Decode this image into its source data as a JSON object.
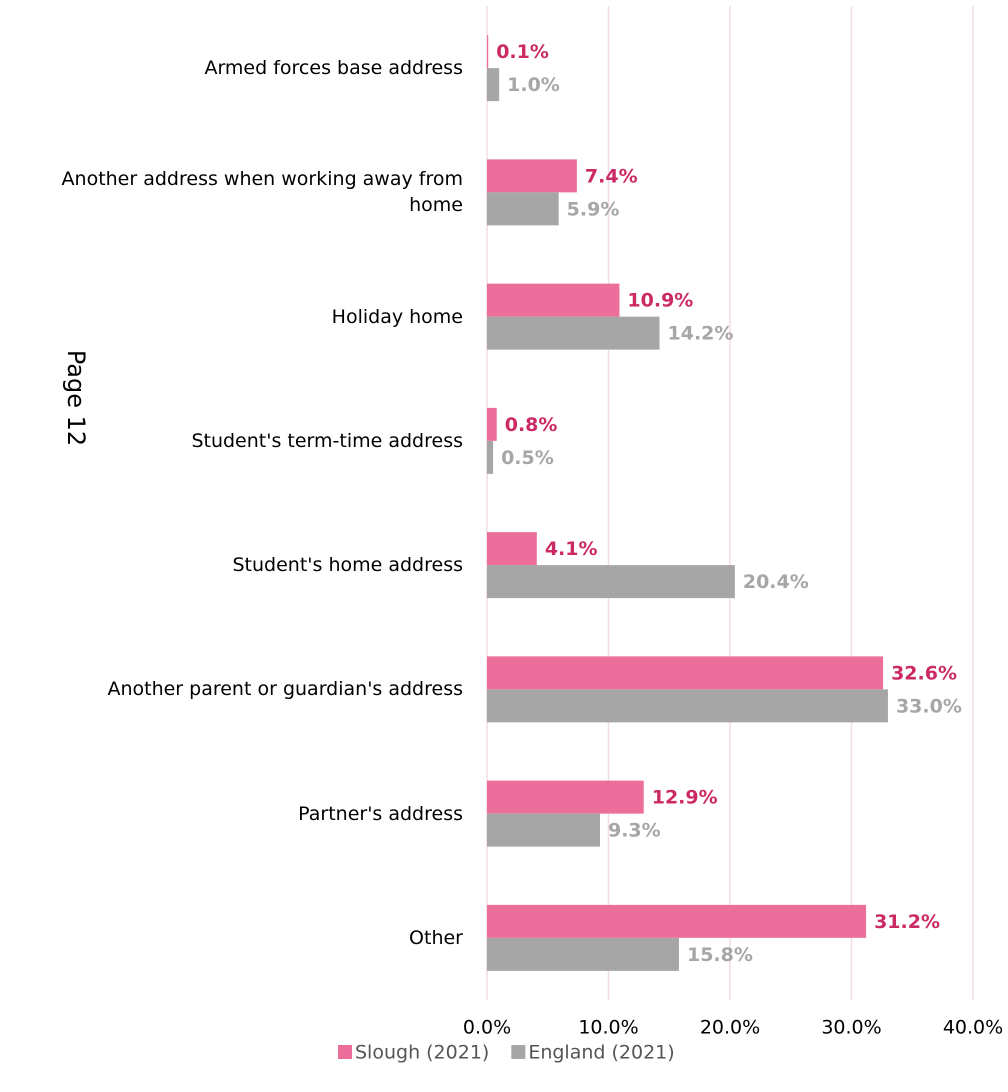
{
  "chart_data": {
    "type": "hbar",
    "annotation": "Page 12",
    "categories": [
      "Armed forces base address",
      "Another address when working away from home",
      "Holiday home",
      "Student's term-time address",
      "Student's home address",
      "Another parent or guardian's address",
      "Partner's address",
      "Other"
    ],
    "series": [
      {
        "name": "Slough (2021)",
        "color": "#ec6f9b",
        "label_color": "#cc2a65",
        "values": [
          0.1,
          7.4,
          10.9,
          0.8,
          4.1,
          32.6,
          12.9,
          31.2
        ],
        "value_labels": [
          "0.1%",
          "7.4%",
          "10.9%",
          "0.8%",
          "4.1%",
          "32.6%",
          "12.9%",
          "31.2%"
        ]
      },
      {
        "name": "England (2021)",
        "color": "#a6a6a6",
        "label_color": "#a6a6a6",
        "values": [
          1.0,
          5.9,
          14.2,
          0.5,
          20.4,
          33.0,
          9.3,
          15.8
        ],
        "value_labels": [
          "1.0%",
          "5.9%",
          "14.2%",
          "0.5%",
          "20.4%",
          "33.0%",
          "9.3%",
          "15.8%"
        ]
      }
    ],
    "xlim": [
      0,
      40
    ],
    "xticks": [
      {
        "value": 0,
        "label": "0.0%"
      },
      {
        "value": 10,
        "label": "10.0%"
      },
      {
        "value": 20,
        "label": "20.0%"
      },
      {
        "value": 30,
        "label": "30.0%"
      },
      {
        "value": 40,
        "label": "40.0%"
      }
    ],
    "grid": true,
    "grid_color": "#f0dcea",
    "legend": "bottom"
  }
}
